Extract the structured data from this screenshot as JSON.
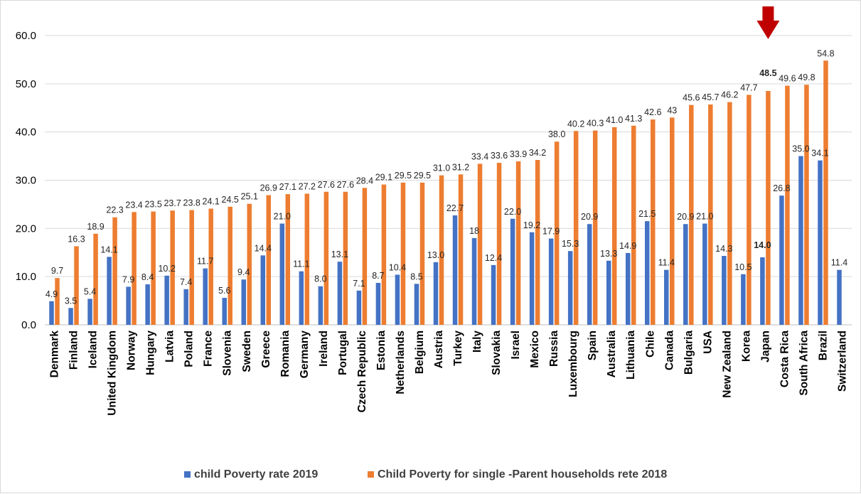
{
  "chart_data": {
    "type": "bar",
    "title": "",
    "xlabel": "",
    "ylabel": "",
    "ylim": [
      0,
      60
    ],
    "y_ticks": [
      "0.0",
      "10.0",
      "20.0",
      "30.0",
      "40.0",
      "50.0",
      "60.0"
    ],
    "grid": "horizontal",
    "legend_position": "bottom",
    "categories": [
      "Denmark",
      "Finland",
      "Iceland",
      "United Kingdom",
      "Norway",
      "Hungary",
      "Latvia",
      "Poland",
      "France",
      "Slovenia",
      "Sweden",
      "Greece",
      "Romania",
      "Germany",
      "Ireland",
      "Portugal",
      "Czech Republic",
      "Estonia",
      "Netherlands",
      "Belgium",
      "Austria",
      "Turkey",
      "Italy",
      "Slovakia",
      "Israel",
      "Mexico",
      "Russia",
      "Luxembourg",
      "Spain",
      "Australia",
      "Lithuania",
      "Chile",
      "Canada",
      "Bulgaria",
      "USA",
      "New Zealand",
      "Korea",
      "Japan",
      "Costa Rica",
      "South Africa",
      "Brazil",
      "Switzerland"
    ],
    "series": [
      {
        "name": "child Poverty rate 2019",
        "color": "#4472c4",
        "values": [
          4.9,
          3.5,
          5.4,
          14.1,
          7.9,
          8.4,
          10.2,
          7.4,
          11.7,
          5.6,
          9.4,
          14.4,
          21.0,
          11.1,
          8.0,
          13.1,
          7.1,
          8.7,
          10.4,
          8.5,
          13.0,
          22.7,
          18,
          12.4,
          22.0,
          19.2,
          17.9,
          15.3,
          20.9,
          13.3,
          14.9,
          21.5,
          11.4,
          20.9,
          21.0,
          14.3,
          10.5,
          14.0,
          26.8,
          35.0,
          34.1,
          11.4
        ],
        "labels": [
          "4.9",
          "3.5",
          "5.4",
          "14.1",
          "7.9",
          "8.4",
          "10.2",
          "7.4",
          "11.7",
          "5.6",
          "9.4",
          "14.4",
          "21.0",
          "11.1",
          "8.0",
          "13.1",
          "7.1",
          "8.7",
          "10.4",
          "8.5",
          "13.0",
          "22.7",
          "18",
          "12.4",
          "22.0",
          "19.2",
          "17.9",
          "15.3",
          "20.9",
          "13.3",
          "14.9",
          "21.5",
          "11.4",
          "20.9",
          "21.0",
          "14.3",
          "10.5",
          "14.0",
          "26.8",
          "35.0",
          "34.1",
          "11.4"
        ]
      },
      {
        "name": "Child Poverty for single -Parent households rete 2018",
        "color": "#ed7d31",
        "values": [
          9.7,
          16.3,
          18.9,
          22.3,
          23.4,
          23.5,
          23.7,
          23.8,
          24.1,
          24.5,
          25.1,
          26.9,
          27.1,
          27.2,
          27.6,
          27.6,
          28.4,
          29.1,
          29.5,
          29.5,
          31.0,
          31.2,
          33.4,
          33.6,
          33.9,
          34.2,
          38.0,
          40.2,
          40.3,
          41.0,
          41.3,
          42.6,
          43,
          45.6,
          45.7,
          46.2,
          47.7,
          48.5,
          49.6,
          49.8,
          54.8,
          null
        ],
        "labels": [
          "9.7",
          "16.3",
          "18.9",
          "22.3",
          "23.4",
          "23.5",
          "23.7",
          "23.8",
          "24.1",
          "24.5",
          "25.1",
          "26.9",
          "27.1",
          "27.2",
          "27.6",
          "27.6",
          "28.4",
          "29.1",
          "29.5",
          "29.5",
          "31.0",
          "31.2",
          "33.4",
          "33.6",
          "33.9",
          "34.2",
          "38.0",
          "40.2",
          "40.3",
          "41.0",
          "41.3",
          "42.6",
          "43",
          "45.6",
          "45.7",
          "46.2",
          "47.7",
          "48.5",
          "49.6",
          "49.8",
          "54.8",
          ""
        ]
      }
    ],
    "highlights": [
      {
        "category": "Japan",
        "series": 1,
        "label": "48.5",
        "color": "#ff0000",
        "marker": "down-arrow",
        "marker_color": "#c00000"
      },
      {
        "category": "Japan",
        "series": 0,
        "label": "14.0",
        "color": "#0000ff"
      }
    ]
  }
}
